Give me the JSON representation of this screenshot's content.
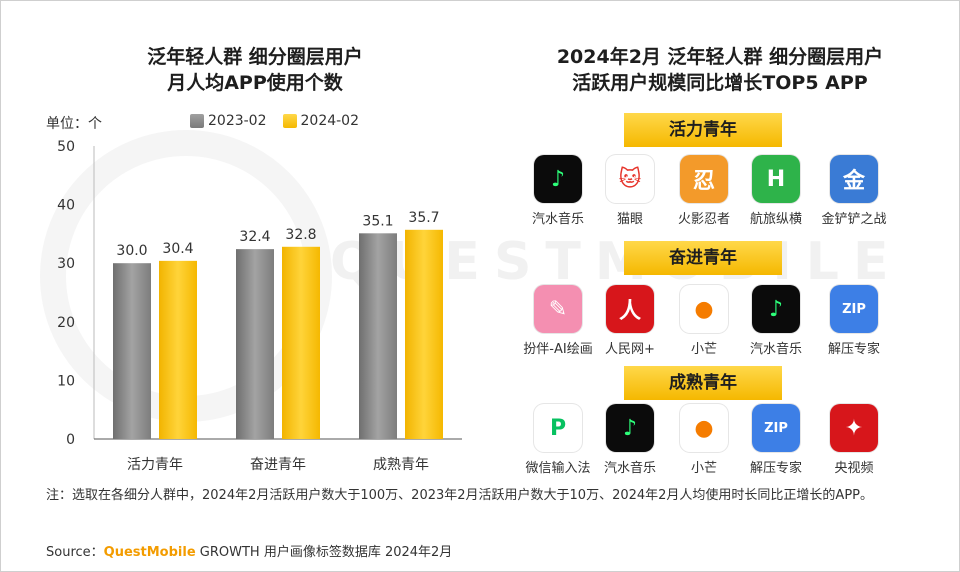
{
  "left_chart": {
    "title_line1": "泛年轻人群 细分圈层用户",
    "title_line2": "月人均APP使用个数",
    "unit": "单位：个"
  },
  "chart_data": {
    "type": "bar",
    "title": "泛年轻人群 细分圈层用户 月人均APP使用个数",
    "categories": [
      "活力青年",
      "奋进青年",
      "成熟青年"
    ],
    "series": [
      {
        "name": "2023-02",
        "values": [
          30.0,
          32.4,
          35.1
        ],
        "color": "#8c8c8c"
      },
      {
        "name": "2024-02",
        "values": [
          30.4,
          32.8,
          35.7
        ],
        "color": "#fbc30a"
      }
    ],
    "ylim": [
      0,
      50
    ],
    "yticks": [
      0,
      10,
      20,
      30,
      40,
      50
    ],
    "legend_position": "top",
    "grid": false
  },
  "right_panel": {
    "title_line1": "2024年2月 泛年轻人群 细分圈层用户",
    "title_line2": "活跃用户规模同比增长TOP5 APP",
    "groups": [
      {
        "label": "活力青年",
        "apps": [
          {
            "name": "汽水音乐",
            "icon": "music-note-icon",
            "bg": "#0b0b0b",
            "fg": "#2dff7a",
            "glyph": "♪"
          },
          {
            "name": "猫眼",
            "icon": "cat-eye-icon",
            "bg": "#ffffff",
            "fg": "#e6332a",
            "glyph": "🐱"
          },
          {
            "name": "火影忍者",
            "icon": "naruto-icon",
            "bg": "#f39a2a",
            "fg": "#ffffff",
            "glyph": "忍"
          },
          {
            "name": "航旅纵横",
            "icon": "airline-icon",
            "bg": "#2eb34a",
            "fg": "#ffffff",
            "glyph": "H"
          },
          {
            "name": "金铲铲之战",
            "icon": "game-penguin-icon",
            "bg": "#3a7bd5",
            "fg": "#ffffff",
            "glyph": "金"
          }
        ]
      },
      {
        "label": "奋进青年",
        "apps": [
          {
            "name": "扮伴-AI绘画",
            "icon": "ai-paint-icon",
            "bg": "#f48fb1",
            "fg": "#ffffff",
            "glyph": "✎"
          },
          {
            "name": "人民网+",
            "icon": "people-daily-icon",
            "bg": "#d7161b",
            "fg": "#ffffff",
            "glyph": "人"
          },
          {
            "name": "小芒",
            "icon": "mango-icon",
            "bg": "#ffffff",
            "fg": "#f57c00",
            "glyph": "●"
          },
          {
            "name": "汽水音乐",
            "icon": "music-note-icon",
            "bg": "#0b0b0b",
            "fg": "#2dff7a",
            "glyph": "♪"
          },
          {
            "name": "解压专家",
            "icon": "zip-icon",
            "bg": "#3d7fe6",
            "fg": "#ffffff",
            "glyph": "ZIP"
          }
        ]
      },
      {
        "label": "成熟青年",
        "apps": [
          {
            "name": "微信输入法",
            "icon": "wechat-input-icon",
            "bg": "#ffffff",
            "fg": "#07c160",
            "glyph": "P"
          },
          {
            "name": "汽水音乐",
            "icon": "music-note-icon",
            "bg": "#0b0b0b",
            "fg": "#2dff7a",
            "glyph": "♪"
          },
          {
            "name": "小芒",
            "icon": "mango-icon",
            "bg": "#ffffff",
            "fg": "#f57c00",
            "glyph": "●"
          },
          {
            "name": "解压专家",
            "icon": "zip-icon",
            "bg": "#3d7fe6",
            "fg": "#ffffff",
            "glyph": "ZIP"
          },
          {
            "name": "央视频",
            "icon": "cctv-video-icon",
            "bg": "#d7161b",
            "fg": "#ffffff",
            "glyph": "✦"
          }
        ]
      }
    ]
  },
  "note": "注：选取在各细分人群中，2024年2月活跃用户数大于100万、2023年2月活跃用户数大于10万、2024年2月人均使用时长同比正增长的APP。",
  "source": {
    "label": "Source：",
    "brand": "QuestMobile",
    "text": " GROWTH 用户画像标签数据库 2024年2月"
  },
  "watermark": "QUESTMOBILE"
}
